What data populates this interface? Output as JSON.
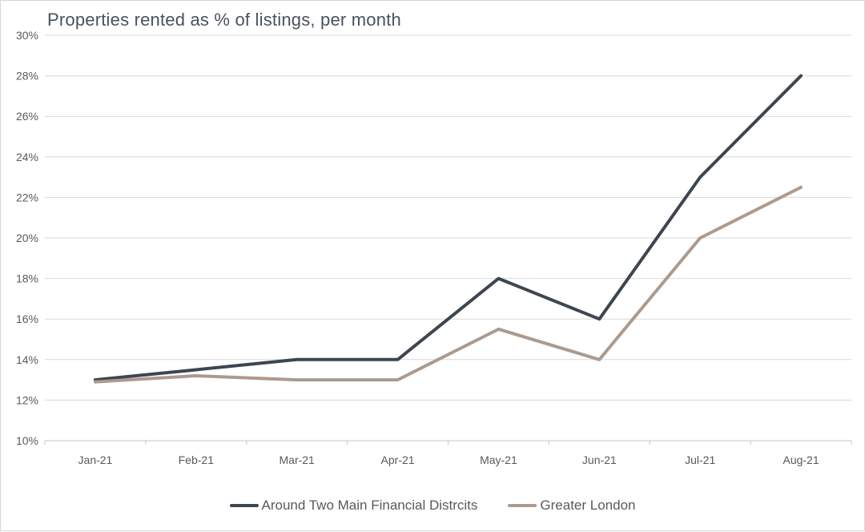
{
  "chart_data": {
    "type": "line",
    "title": "Properties rented as % of listings, per month",
    "categories": [
      "Jan-21",
      "Feb-21",
      "Mar-21",
      "Apr-21",
      "May-21",
      "Jun-21",
      "Jul-21",
      "Aug-21"
    ],
    "series": [
      {
        "name": "Around Two Main Financial Distrcits",
        "color": "#3d4650",
        "values": [
          13,
          13.5,
          14,
          14,
          18,
          16,
          23,
          28
        ]
      },
      {
        "name": "Greater London",
        "color": "#ac9a8e",
        "values": [
          12.9,
          13.2,
          13,
          13,
          15.5,
          14,
          20,
          22.5
        ]
      }
    ],
    "ylim": [
      10,
      30
    ],
    "ytick_step": 2,
    "ytick_suffix": "%",
    "grid": "horizontal",
    "legend_position": "bottom",
    "colors": {
      "gridline": "#d9d9d9",
      "axis_line": "#c6c6c6",
      "tick_label": "#595959",
      "title": "#49525e",
      "background": "#ffffff",
      "frame_border": "#d7d7d7"
    }
  }
}
